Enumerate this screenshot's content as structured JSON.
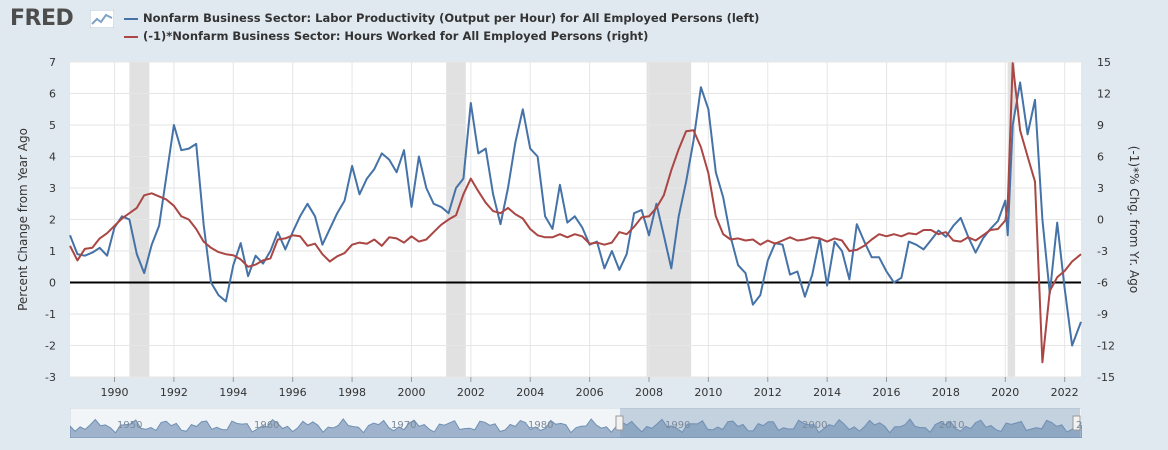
{
  "brand": {
    "logo_text": "FRED",
    "logo_icon": "fred-chart-icon"
  },
  "colors": {
    "series1": "#4572a7",
    "series2": "#aa4643",
    "recession": "#e1e1e1",
    "zero_line": "#000000"
  },
  "legend": [
    {
      "label": "Nonfarm Business Sector: Labor Productivity (Output per Hour) for All Employed Persons (left)",
      "color": "#4572a7"
    },
    {
      "label": "(-1)*Nonfarm Business Sector: Hours Worked for All Employed Persons (right)",
      "color": "#aa4643"
    }
  ],
  "navigator": {
    "labels": [
      "1950",
      "1960",
      "1970",
      "1980",
      "1990",
      "2000",
      "2010",
      "2020"
    ]
  },
  "chart_data": {
    "type": "line",
    "title": "",
    "ylabel_left": "Percent Change from Year Ago",
    "ylabel_right": "(-1)*% Chg. from Yr. Ago",
    "xlim": [
      1988.5,
      2022.55
    ],
    "ylim_left": [
      -3,
      7
    ],
    "ylim_right": [
      -15,
      15
    ],
    "yticks_left": [
      "7",
      "6",
      "5",
      "4",
      "3",
      "2",
      "1",
      "0",
      "-1",
      "-2",
      "-3"
    ],
    "yticks_right": [
      "15",
      "12",
      "9",
      "6",
      "3",
      "0",
      "-3",
      "-6",
      "-9",
      "-12",
      "-15"
    ],
    "xticks": [
      "1990",
      "1992",
      "1994",
      "1996",
      "1998",
      "2000",
      "2002",
      "2004",
      "2006",
      "2008",
      "2010",
      "2012",
      "2014",
      "2016",
      "2018",
      "2020",
      "2022"
    ],
    "grid": true,
    "legend_position": "top-left",
    "recessions": [
      [
        1990.5,
        1991.17
      ],
      [
        2001.17,
        2001.83
      ],
      [
        2007.92,
        2009.42
      ],
      [
        2020.08,
        2020.33
      ]
    ],
    "series": [
      {
        "name": "Nonfarm Business Sector: Labor Productivity (Output per Hour) for All Employed Persons (left)",
        "axis": "left",
        "points": [
          [
            1988.5,
            1.5
          ],
          [
            1988.75,
            0.9
          ],
          [
            1989,
            0.85
          ],
          [
            1989.25,
            0.95
          ],
          [
            1989.5,
            1.1
          ],
          [
            1989.75,
            0.85
          ],
          [
            1990,
            1.75
          ],
          [
            1990.25,
            2.1
          ],
          [
            1990.5,
            2.0
          ],
          [
            1990.75,
            0.9
          ],
          [
            1991,
            0.3
          ],
          [
            1991.25,
            1.2
          ],
          [
            1991.5,
            1.8
          ],
          [
            1991.75,
            3.4
          ],
          [
            1992,
            5.0
          ],
          [
            1992.25,
            4.2
          ],
          [
            1992.5,
            4.25
          ],
          [
            1992.75,
            4.4
          ],
          [
            1993,
            1.85
          ],
          [
            1993.25,
            0.0
          ],
          [
            1993.5,
            -0.4
          ],
          [
            1993.75,
            -0.6
          ],
          [
            1994,
            0.55
          ],
          [
            1994.25,
            1.25
          ],
          [
            1994.5,
            0.2
          ],
          [
            1994.75,
            0.85
          ],
          [
            1995,
            0.6
          ],
          [
            1995.25,
            1.0
          ],
          [
            1995.5,
            1.6
          ],
          [
            1995.75,
            1.05
          ],
          [
            1996,
            1.6
          ],
          [
            1996.25,
            2.1
          ],
          [
            1996.5,
            2.5
          ],
          [
            1996.75,
            2.1
          ],
          [
            1997,
            1.2
          ],
          [
            1997.25,
            1.7
          ],
          [
            1997.5,
            2.2
          ],
          [
            1997.75,
            2.6
          ],
          [
            1998,
            3.7
          ],
          [
            1998.25,
            2.8
          ],
          [
            1998.5,
            3.3
          ],
          [
            1998.75,
            3.6
          ],
          [
            1999,
            4.1
          ],
          [
            1999.25,
            3.9
          ],
          [
            1999.5,
            3.5
          ],
          [
            1999.75,
            4.2
          ],
          [
            2000,
            2.4
          ],
          [
            2000.25,
            4.0
          ],
          [
            2000.5,
            3.0
          ],
          [
            2000.75,
            2.5
          ],
          [
            2001,
            2.4
          ],
          [
            2001.25,
            2.2
          ],
          [
            2001.5,
            3.0
          ],
          [
            2001.75,
            3.3
          ],
          [
            2002,
            5.7
          ],
          [
            2002.25,
            4.1
          ],
          [
            2002.5,
            4.25
          ],
          [
            2002.75,
            2.8
          ],
          [
            2003,
            1.85
          ],
          [
            2003.25,
            3.0
          ],
          [
            2003.5,
            4.45
          ],
          [
            2003.75,
            5.5
          ],
          [
            2004,
            4.25
          ],
          [
            2004.25,
            4.0
          ],
          [
            2004.5,
            2.1
          ],
          [
            2004.75,
            1.7
          ],
          [
            2005,
            3.1
          ],
          [
            2005.25,
            1.9
          ],
          [
            2005.5,
            2.1
          ],
          [
            2005.75,
            1.75
          ],
          [
            2006,
            1.2
          ],
          [
            2006.25,
            1.3
          ],
          [
            2006.5,
            0.45
          ],
          [
            2006.75,
            1.0
          ],
          [
            2007,
            0.4
          ],
          [
            2007.25,
            0.9
          ],
          [
            2007.5,
            2.2
          ],
          [
            2007.75,
            2.3
          ],
          [
            2008,
            1.5
          ],
          [
            2008.25,
            2.5
          ],
          [
            2008.5,
            1.5
          ],
          [
            2008.75,
            0.45
          ],
          [
            2009,
            2.1
          ],
          [
            2009.25,
            3.2
          ],
          [
            2009.5,
            4.5
          ],
          [
            2009.75,
            6.2
          ],
          [
            2010,
            5.5
          ],
          [
            2010.25,
            3.5
          ],
          [
            2010.5,
            2.7
          ],
          [
            2010.75,
            1.45
          ],
          [
            2011,
            0.55
          ],
          [
            2011.25,
            0.3
          ],
          [
            2011.5,
            -0.7
          ],
          [
            2011.75,
            -0.4
          ],
          [
            2012,
            0.7
          ],
          [
            2012.25,
            1.25
          ],
          [
            2012.5,
            1.2
          ],
          [
            2012.75,
            0.25
          ],
          [
            2013,
            0.35
          ],
          [
            2013.25,
            -0.45
          ],
          [
            2013.5,
            0.25
          ],
          [
            2013.75,
            1.4
          ],
          [
            2014,
            -0.1
          ],
          [
            2014.25,
            1.3
          ],
          [
            2014.5,
            1.0
          ],
          [
            2014.75,
            0.1
          ],
          [
            2015,
            1.85
          ],
          [
            2015.25,
            1.3
          ],
          [
            2015.5,
            0.8
          ],
          [
            2015.75,
            0.8
          ],
          [
            2016,
            0.35
          ],
          [
            2016.25,
            0.0
          ],
          [
            2016.5,
            0.15
          ],
          [
            2016.75,
            1.3
          ],
          [
            2017,
            1.2
          ],
          [
            2017.25,
            1.05
          ],
          [
            2017.5,
            1.35
          ],
          [
            2017.75,
            1.65
          ],
          [
            2018,
            1.45
          ],
          [
            2018.25,
            1.8
          ],
          [
            2018.5,
            2.05
          ],
          [
            2018.75,
            1.45
          ],
          [
            2019,
            0.95
          ],
          [
            2019.25,
            1.4
          ],
          [
            2019.5,
            1.7
          ],
          [
            2019.75,
            1.95
          ],
          [
            2020,
            2.6
          ],
          [
            2020.08,
            1.5
          ],
          [
            2020.25,
            5.0
          ],
          [
            2020.5,
            6.35
          ],
          [
            2020.75,
            4.7
          ],
          [
            2021,
            5.8
          ],
          [
            2021.25,
            2.0
          ],
          [
            2021.5,
            -0.35
          ],
          [
            2021.75,
            1.9
          ],
          [
            2022,
            -0.2
          ],
          [
            2022.25,
            -2.0
          ],
          [
            2022.55,
            -1.25
          ]
        ]
      },
      {
        "name": "(-1)*Nonfarm Business Sector: Hours Worked for All Employed Persons (right)",
        "axis": "right",
        "points": [
          [
            1988.5,
            -2.5
          ],
          [
            1988.75,
            -3.9
          ],
          [
            1989,
            -2.8
          ],
          [
            1989.25,
            -2.7
          ],
          [
            1989.5,
            -1.8
          ],
          [
            1989.75,
            -1.3
          ],
          [
            1990,
            -0.6
          ],
          [
            1990.25,
            0.1
          ],
          [
            1990.5,
            0.6
          ],
          [
            1990.75,
            1.1
          ],
          [
            1991,
            2.3
          ],
          [
            1991.25,
            2.5
          ],
          [
            1991.5,
            2.2
          ],
          [
            1991.75,
            1.9
          ],
          [
            1992,
            1.3
          ],
          [
            1992.25,
            0.3
          ],
          [
            1992.5,
            0.0
          ],
          [
            1992.75,
            -0.9
          ],
          [
            1993,
            -2.1
          ],
          [
            1993.25,
            -2.7
          ],
          [
            1993.5,
            -3.1
          ],
          [
            1993.75,
            -3.3
          ],
          [
            1994,
            -3.4
          ],
          [
            1994.25,
            -3.8
          ],
          [
            1994.5,
            -4.5
          ],
          [
            1994.75,
            -4.3
          ],
          [
            1995,
            -3.9
          ],
          [
            1995.25,
            -3.7
          ],
          [
            1995.5,
            -1.9
          ],
          [
            1995.75,
            -1.8
          ],
          [
            1996,
            -1.5
          ],
          [
            1996.25,
            -1.6
          ],
          [
            1996.5,
            -2.5
          ],
          [
            1996.75,
            -2.3
          ],
          [
            1997,
            -3.3
          ],
          [
            1997.25,
            -4.0
          ],
          [
            1997.5,
            -3.5
          ],
          [
            1997.75,
            -3.2
          ],
          [
            1998,
            -2.4
          ],
          [
            1998.25,
            -2.2
          ],
          [
            1998.5,
            -2.3
          ],
          [
            1998.75,
            -1.9
          ],
          [
            1999,
            -2.5
          ],
          [
            1999.25,
            -1.7
          ],
          [
            1999.5,
            -1.8
          ],
          [
            1999.75,
            -2.2
          ],
          [
            2000,
            -1.6
          ],
          [
            2000.25,
            -2.1
          ],
          [
            2000.5,
            -1.9
          ],
          [
            2000.75,
            -1.2
          ],
          [
            2001,
            -0.5
          ],
          [
            2001.25,
            0.0
          ],
          [
            2001.5,
            0.4
          ],
          [
            2001.75,
            2.4
          ],
          [
            2002,
            3.9
          ],
          [
            2002.25,
            2.7
          ],
          [
            2002.5,
            1.6
          ],
          [
            2002.75,
            0.8
          ],
          [
            2003,
            0.6
          ],
          [
            2003.25,
            1.1
          ],
          [
            2003.5,
            0.5
          ],
          [
            2003.75,
            0.1
          ],
          [
            2004,
            -0.9
          ],
          [
            2004.25,
            -1.5
          ],
          [
            2004.5,
            -1.7
          ],
          [
            2004.75,
            -1.7
          ],
          [
            2005,
            -1.4
          ],
          [
            2005.25,
            -1.7
          ],
          [
            2005.5,
            -1.4
          ],
          [
            2005.75,
            -1.6
          ],
          [
            2006,
            -2.3
          ],
          [
            2006.25,
            -2.2
          ],
          [
            2006.5,
            -2.4
          ],
          [
            2006.75,
            -2.2
          ],
          [
            2007,
            -1.2
          ],
          [
            2007.25,
            -1.4
          ],
          [
            2007.5,
            -0.7
          ],
          [
            2007.75,
            0.2
          ],
          [
            2008,
            0.3
          ],
          [
            2008.25,
            1.1
          ],
          [
            2008.5,
            2.3
          ],
          [
            2008.75,
            4.7
          ],
          [
            2009,
            6.7
          ],
          [
            2009.25,
            8.4
          ],
          [
            2009.5,
            8.5
          ],
          [
            2009.75,
            6.9
          ],
          [
            2010,
            4.4
          ],
          [
            2010.25,
            0.3
          ],
          [
            2010.5,
            -1.4
          ],
          [
            2010.75,
            -1.9
          ],
          [
            2011,
            -1.8
          ],
          [
            2011.25,
            -2.0
          ],
          [
            2011.5,
            -1.9
          ],
          [
            2011.75,
            -2.4
          ],
          [
            2012,
            -2.0
          ],
          [
            2012.25,
            -2.3
          ],
          [
            2012.5,
            -2.0
          ],
          [
            2012.75,
            -1.7
          ],
          [
            2013,
            -2.0
          ],
          [
            2013.25,
            -1.9
          ],
          [
            2013.5,
            -1.7
          ],
          [
            2013.75,
            -1.8
          ],
          [
            2014,
            -2.1
          ],
          [
            2014.25,
            -1.8
          ],
          [
            2014.5,
            -2.0
          ],
          [
            2014.75,
            -3.0
          ],
          [
            2015,
            -2.9
          ],
          [
            2015.25,
            -2.5
          ],
          [
            2015.5,
            -1.9
          ],
          [
            2015.75,
            -1.4
          ],
          [
            2016,
            -1.6
          ],
          [
            2016.25,
            -1.4
          ],
          [
            2016.5,
            -1.6
          ],
          [
            2016.75,
            -1.3
          ],
          [
            2017,
            -1.4
          ],
          [
            2017.25,
            -1.0
          ],
          [
            2017.5,
            -1.0
          ],
          [
            2017.75,
            -1.4
          ],
          [
            2018,
            -1.2
          ],
          [
            2018.25,
            -2.0
          ],
          [
            2018.5,
            -2.1
          ],
          [
            2018.75,
            -1.7
          ],
          [
            2019,
            -2.0
          ],
          [
            2019.25,
            -1.5
          ],
          [
            2019.5,
            -1.0
          ],
          [
            2019.75,
            -0.9
          ],
          [
            2020,
            -0.1
          ],
          [
            2020.08,
            1.3
          ],
          [
            2020.25,
            14.9
          ],
          [
            2020.5,
            8.5
          ],
          [
            2020.75,
            6.0
          ],
          [
            2021,
            3.6
          ],
          [
            2021.25,
            -13.6
          ],
          [
            2021.5,
            -6.8
          ],
          [
            2021.75,
            -5.5
          ],
          [
            2022,
            -4.9
          ],
          [
            2022.25,
            -4.0
          ],
          [
            2022.55,
            -3.3
          ]
        ]
      }
    ]
  }
}
